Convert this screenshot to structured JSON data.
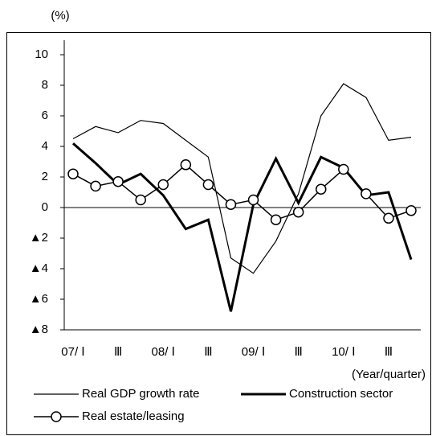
{
  "chart_data": {
    "type": "line",
    "y_label": "(%)",
    "x_label": "(Year/quarter)",
    "categories": [
      "07/ Ⅰ",
      null,
      "Ⅲ",
      null,
      "08/ Ⅰ",
      null,
      "Ⅲ",
      null,
      "09/ Ⅰ",
      null,
      "Ⅲ",
      null,
      "10/ Ⅰ",
      null,
      "Ⅲ",
      null
    ],
    "series": [
      {
        "name": "Real GDP growth rate",
        "color": "#000000",
        "marker": "none",
        "values": [
          4.5,
          5.3,
          4.9,
          5.7,
          5.5,
          4.4,
          3.3,
          -3.3,
          -4.3,
          -2.2,
          0.9,
          6.0,
          8.1,
          7.2,
          4.4,
          4.6
        ]
      },
      {
        "name": "Construction sector",
        "color": "#000000",
        "marker": "none",
        "values": [
          4.2,
          2.9,
          1.5,
          2.2,
          0.8,
          -1.4,
          -0.8,
          -6.8,
          0.2,
          3.2,
          0.3,
          3.3,
          2.6,
          0.8,
          1.0,
          -3.4
        ]
      },
      {
        "name": "Real estate/leasing",
        "color": "#000000",
        "marker": "circle",
        "values": [
          2.2,
          1.4,
          1.7,
          0.5,
          1.5,
          2.8,
          1.5,
          0.2,
          0.5,
          -0.8,
          -0.3,
          1.2,
          2.5,
          0.9,
          -0.7,
          -0.2
        ]
      }
    ],
    "ylim": [
      -8,
      10
    ],
    "yticks": [
      {
        "value": -8,
        "label": "▲8"
      },
      {
        "value": -6,
        "label": "▲6"
      },
      {
        "value": -4,
        "label": "▲4"
      },
      {
        "value": -2,
        "label": "▲2"
      },
      0,
      2,
      4,
      6,
      8,
      10
    ],
    "grid": false
  }
}
